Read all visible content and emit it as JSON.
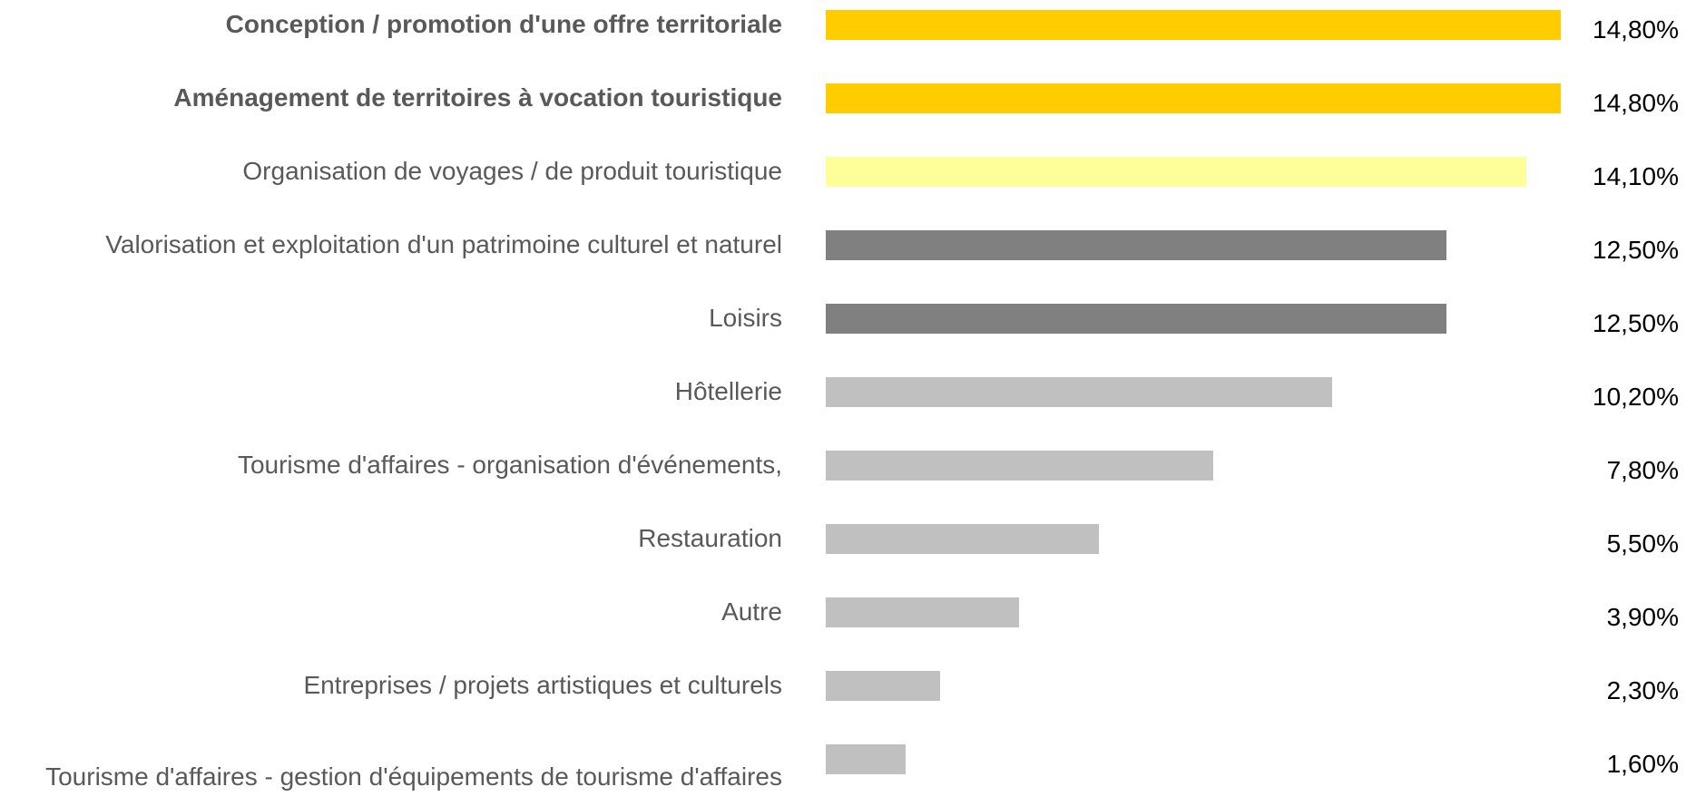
{
  "chart_data": {
    "type": "barh",
    "categories": [
      "Conception / promotion d'une offre territoriale",
      "Aménagement de territoires à vocation touristique",
      "Organisation de voyages / de produit touristique",
      "Valorisation et exploitation d'un patrimoine culturel et naturel",
      "Loisirs",
      "Hôtellerie",
      "Tourisme d'affaires - organisation d'événements,",
      "Restauration",
      "Autre",
      "Entreprises / projets artistiques et culturels",
      "Tourisme d'affaires - gestion d'équipements de tourisme d'affaires"
    ],
    "values": [
      14.8,
      14.8,
      14.1,
      12.5,
      12.5,
      10.2,
      7.8,
      5.5,
      3.9,
      2.3,
      1.6
    ],
    "value_labels": [
      "14,80%",
      "14,80%",
      "14,10%",
      "12,50%",
      "12,50%",
      "10,20%",
      "7,80%",
      "5,50%",
      "3,90%",
      "2,30%",
      "1,60%"
    ],
    "colors": [
      "#ffcc00",
      "#ffcc00",
      "#ffff99",
      "#808080",
      "#808080",
      "#c0c0c0",
      "#c0c0c0",
      "#c0c0c0",
      "#c0c0c0",
      "#c0c0c0",
      "#c0c0c0"
    ],
    "bold_categories": [
      0,
      1
    ]
  }
}
